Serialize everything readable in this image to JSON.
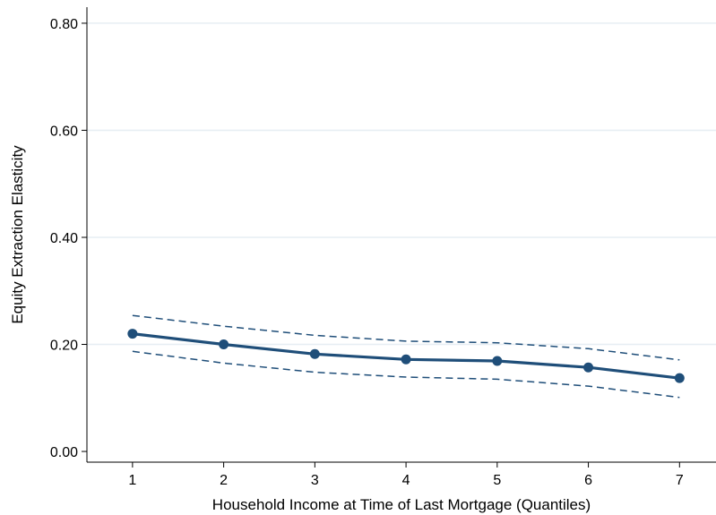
{
  "chart_data": {
    "type": "line",
    "xlabel": "Household Income at Time of Last Mortgage (Quantiles)",
    "ylabel": "Equity Extraction Elasticity",
    "x": [
      1,
      2,
      3,
      4,
      5,
      6,
      7
    ],
    "xlim": [
      0.5,
      7.4
    ],
    "ylim": [
      -0.02,
      0.83
    ],
    "y_ticks": [
      0.0,
      0.2,
      0.4,
      0.6,
      0.8
    ],
    "y_tick_labels": [
      "0.00",
      "0.20",
      "0.40",
      "0.60",
      "0.80"
    ],
    "x_ticks": [
      1,
      2,
      3,
      4,
      5,
      6,
      7
    ],
    "x_tick_labels": [
      "1",
      "2",
      "3",
      "4",
      "5",
      "6",
      "7"
    ],
    "grid": "horizontal",
    "series": [
      {
        "role": "estimate",
        "style": "solid-with-markers",
        "values": [
          0.22,
          0.2,
          0.182,
          0.172,
          0.169,
          0.157,
          0.137
        ]
      },
      {
        "role": "upper-ci",
        "style": "dashed",
        "values": [
          0.254,
          0.234,
          0.217,
          0.206,
          0.203,
          0.192,
          0.171
        ]
      },
      {
        "role": "lower-ci",
        "style": "dashed",
        "values": [
          0.187,
          0.165,
          0.148,
          0.139,
          0.135,
          0.122,
          0.101
        ]
      }
    ],
    "colors": {
      "line": "#1f4e79",
      "grid": "#e6eef3",
      "axis": "#000000"
    }
  }
}
